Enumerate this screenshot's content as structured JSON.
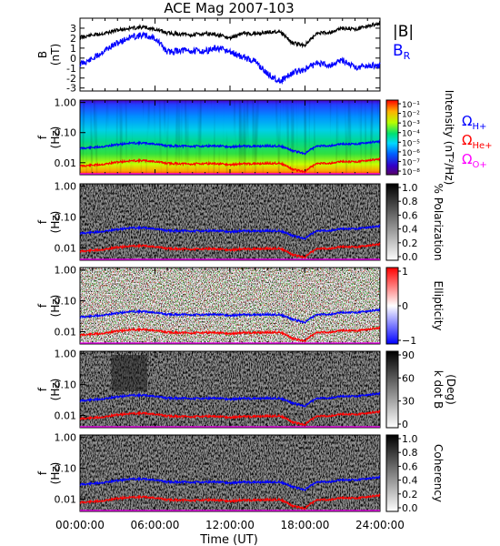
{
  "title": "ACE Mag 2007-103",
  "xlabel": "Time (UT)",
  "x_ticks": [
    "00:00:00",
    "06:00:00",
    "12:00:00",
    "18:00:00",
    "24:00:00"
  ],
  "colors": {
    "black": "#000000",
    "blue": "#0000ff",
    "red": "#ff0000",
    "magenta": "#ff00ff"
  },
  "legends": {
    "B": {
      "absB": "|B|",
      "br": "B",
      "br_sub": "R"
    },
    "omegas": [
      {
        "sym": "Ω",
        "sub": "H+",
        "color": "#0000ff"
      },
      {
        "sym": "Ω",
        "sub": "He+",
        "color": "#ff0000"
      },
      {
        "sym": "Ω",
        "sub": "O+",
        "color": "#ff00ff"
      }
    ]
  },
  "chart_data": [
    {
      "type": "line",
      "panel": "B",
      "ylabel_main": "B",
      "ylabel_unit": "(nT)",
      "y_ticks": [
        "3",
        "2",
        "1",
        "0",
        "-1",
        "-2",
        "-3"
      ],
      "ylim": [
        -3.3,
        4
      ],
      "x_hours": [
        0,
        1,
        2,
        3,
        4,
        5,
        6,
        7,
        8,
        9,
        10,
        11,
        12,
        13,
        14,
        15,
        16,
        17,
        18,
        19,
        20,
        21,
        22,
        23,
        24
      ],
      "series": [
        {
          "name": "|B|",
          "color": "#000000",
          "values": [
            2.1,
            2.3,
            2.5,
            2.8,
            3.0,
            3.1,
            2.9,
            2.5,
            2.4,
            2.3,
            2.5,
            2.3,
            2.0,
            2.5,
            2.4,
            2.6,
            2.7,
            1.5,
            1.3,
            2.5,
            2.6,
            3.0,
            2.9,
            3.2,
            3.5
          ]
        },
        {
          "name": "B_R",
          "color": "#0000ff",
          "values": [
            -0.6,
            -0.1,
            0.8,
            1.5,
            2.1,
            2.3,
            2.0,
            0.6,
            0.8,
            0.7,
            0.7,
            1.0,
            0.6,
            0.1,
            -0.3,
            -1.6,
            -2.3,
            -1.5,
            -1.1,
            -0.5,
            -0.7,
            -0.2,
            -0.9,
            -0.8,
            -0.7
          ]
        }
      ]
    },
    {
      "type": "heatmap",
      "panel": "Intensity",
      "ylabel_main": "f",
      "ylabel_unit": "(Hz)",
      "y_ticks": [
        "1.00",
        "0.10",
        "0.01"
      ],
      "ylim_hz": [
        0.004,
        1.2
      ],
      "colorbar_label": "Intensity (nT²/Hz)",
      "colorbar_ticks": [
        "10⁻¹",
        "10⁻²",
        "10⁻³",
        "10⁻⁴",
        "10⁻⁵",
        "10⁻⁶",
        "10⁻⁷",
        "10⁻⁸"
      ]
    },
    {
      "type": "heatmap",
      "panel": "Polarization",
      "ylabel_main": "f",
      "ylabel_unit": "(Hz)",
      "y_ticks": [
        "1.00",
        "0.10",
        "0.01"
      ],
      "colorbar_label": "% Polarization",
      "colorbar_ticks": [
        "1.0",
        "0.8",
        "0.6",
        "0.4",
        "0.2",
        "0.0"
      ]
    },
    {
      "type": "heatmap",
      "panel": "Ellipticity",
      "ylabel_main": "f",
      "ylabel_unit": "(Hz)",
      "y_ticks": [
        "1.00",
        "0.10",
        "0.01"
      ],
      "colorbar_label": "Ellipticity",
      "colorbar_ticks": [
        "1",
        "0",
        "−1"
      ]
    },
    {
      "type": "heatmap",
      "panel": "k dot B",
      "ylabel_main": "f",
      "ylabel_unit": "(Hz)",
      "y_ticks": [
        "1.00",
        "0.10",
        "0.01"
      ],
      "colorbar_label": "k dot B",
      "colorbar_unit": "(Deg)",
      "colorbar_ticks": [
        "90",
        "60",
        "30",
        "0"
      ]
    },
    {
      "type": "heatmap",
      "panel": "Coherency",
      "ylabel_main": "f",
      "ylabel_unit": "(Hz)",
      "y_ticks": [
        "1.00",
        "0.10",
        "0.01"
      ],
      "colorbar_label": "Coherency",
      "colorbar_ticks": [
        "1.0",
        "0.8",
        "0.6",
        "0.4",
        "0.2",
        "0.0"
      ]
    },
    {
      "type": "line",
      "panel": "gyrofrequency overlays (all spectral panels)",
      "x_hours": [
        0,
        1,
        2,
        3,
        4,
        5,
        6,
        7,
        8,
        9,
        10,
        11,
        12,
        13,
        14,
        15,
        16,
        17,
        18,
        19,
        20,
        21,
        22,
        23,
        24
      ],
      "series": [
        {
          "name": "Ω H+",
          "color": "#0000ff",
          "values": [
            0.03,
            0.032,
            0.035,
            0.04,
            0.045,
            0.045,
            0.042,
            0.036,
            0.036,
            0.035,
            0.036,
            0.036,
            0.033,
            0.036,
            0.035,
            0.036,
            0.036,
            0.025,
            0.02,
            0.036,
            0.037,
            0.042,
            0.042,
            0.046,
            0.052
          ]
        },
        {
          "name": "Ω He+",
          "color": "#ff0000",
          "values": [
            0.0078,
            0.0083,
            0.009,
            0.0105,
            0.0115,
            0.0118,
            0.011,
            0.0095,
            0.0093,
            0.009,
            0.0095,
            0.0092,
            0.0085,
            0.0093,
            0.0092,
            0.0095,
            0.0097,
            0.006,
            0.005,
            0.0095,
            0.0097,
            0.011,
            0.0108,
            0.0118,
            0.0135
          ]
        },
        {
          "name": "Ω O+",
          "color": "#ff00ff",
          "values": [
            0.002,
            0.0021,
            0.0023,
            0.0026,
            0.0029,
            0.003,
            0.0028,
            0.0024,
            0.0023,
            0.0023,
            0.0024,
            0.0023,
            0.0021,
            0.0023,
            0.0023,
            0.0024,
            0.0024,
            0.0016,
            0.0013,
            0.0024,
            0.0024,
            0.0028,
            0.0027,
            0.003,
            0.0034
          ]
        }
      ]
    }
  ]
}
